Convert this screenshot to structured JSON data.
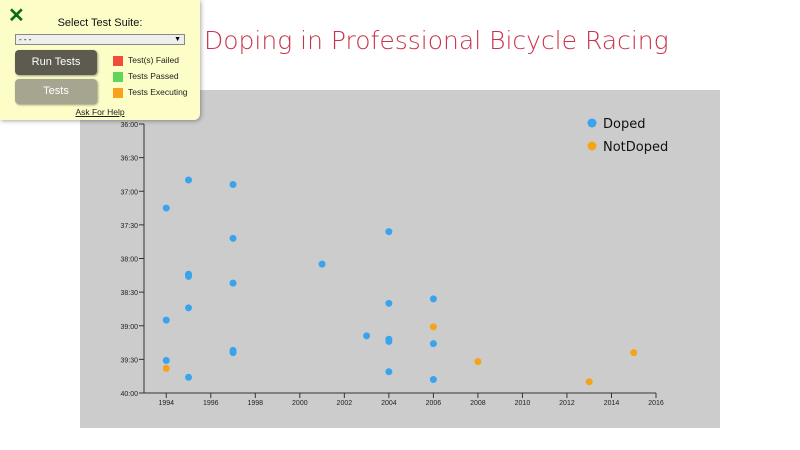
{
  "title": "Doping in Professional Bicycle Racing",
  "test_panel": {
    "close_icon": "x-icon",
    "select_label": "Select Test Suite:",
    "select_value": "- - -",
    "run_button": "Run Tests",
    "tests_button": "Tests",
    "legend": [
      {
        "label": "Test(s) Failed",
        "color": "#f04c3c"
      },
      {
        "label": "Tests Passed",
        "color": "#5fd65a"
      },
      {
        "label": "Tests Executing",
        "color": "#f8a21c"
      }
    ],
    "help_link": "Ask For Help"
  },
  "chart_data": {
    "type": "scatter",
    "xlim": [
      1993,
      2016
    ],
    "ylim": [
      "36:00",
      "40:00"
    ],
    "x_ticks": [
      "1994",
      "1996",
      "1998",
      "2000",
      "2002",
      "2004",
      "2006",
      "2008",
      "2010",
      "2012",
      "2014",
      "2016"
    ],
    "y_ticks": [
      "36:00",
      "36:30",
      "37:00",
      "37:30",
      "38:00",
      "38:30",
      "39:00",
      "39:30",
      "40:00"
    ],
    "y_reversed": true,
    "grid": false,
    "legend_position": "top-right",
    "colors": {
      "Doped": "#3aa3ee",
      "NotDoped": "#f5a31a"
    },
    "series": [
      {
        "name": "Doped",
        "points": [
          [
            1994,
            "37:15"
          ],
          [
            1994,
            "38:55"
          ],
          [
            1994,
            "39:31"
          ],
          [
            1995,
            "36:50"
          ],
          [
            1995,
            "38:14"
          ],
          [
            1995,
            "38:16"
          ],
          [
            1995,
            "38:44"
          ],
          [
            1995,
            "39:46"
          ],
          [
            1997,
            "36:54"
          ],
          [
            1997,
            "37:42"
          ],
          [
            1997,
            "38:22"
          ],
          [
            1997,
            "39:22"
          ],
          [
            1997,
            "39:24"
          ],
          [
            2001,
            "38:05"
          ],
          [
            2003,
            "39:09"
          ],
          [
            2004,
            "37:36"
          ],
          [
            2004,
            "38:40"
          ],
          [
            2004,
            "39:12"
          ],
          [
            2004,
            "39:14"
          ],
          [
            2004,
            "39:41"
          ],
          [
            2006,
            "38:36"
          ],
          [
            2006,
            "39:16"
          ],
          [
            2006,
            "39:48"
          ]
        ]
      },
      {
        "name": "NotDoped",
        "points": [
          [
            1994,
            "39:38"
          ],
          [
            2006,
            "39:01"
          ],
          [
            2008,
            "39:32"
          ],
          [
            2013,
            "39:50"
          ],
          [
            2015,
            "39:24"
          ]
        ]
      }
    ]
  }
}
